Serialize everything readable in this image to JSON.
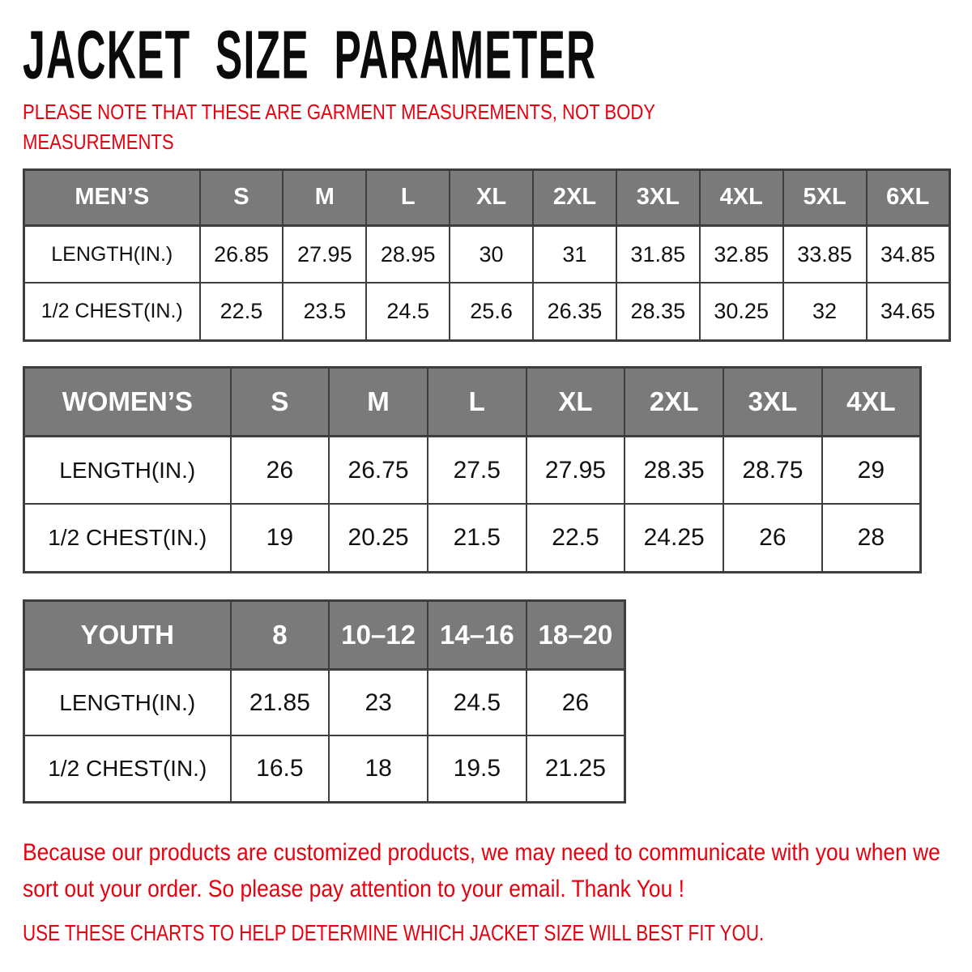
{
  "page": {
    "title": "JACKET SIZE PARAMETER",
    "note": "PLEASE NOTE THAT THESE ARE GARMENT MEASUREMENTS, NOT BODY MEASUREMENTS"
  },
  "tables": [
    {
      "id": "mens",
      "group_label": "MEN’S",
      "size_headers": [
        "S",
        "M",
        "L",
        "XL",
        "2XL",
        "3XL",
        "4XL",
        "5XL",
        "6XL"
      ],
      "rows": [
        {
          "label": "LENGTH(IN.)",
          "values": [
            "26.85",
            "27.95",
            "28.95",
            "30",
            "31",
            "31.85",
            "32.85",
            "33.85",
            "34.85"
          ]
        },
        {
          "label": "1/2 CHEST(IN.)",
          "values": [
            "22.5",
            "23.5",
            "24.5",
            "25.6",
            "26.35",
            "28.35",
            "30.25",
            "32",
            "34.65"
          ]
        }
      ]
    },
    {
      "id": "womens",
      "group_label": "WOMEN’S",
      "size_headers": [
        "S",
        "M",
        "L",
        "XL",
        "2XL",
        "3XL",
        "4XL"
      ],
      "rows": [
        {
          "label": "LENGTH(IN.)",
          "values": [
            "26",
            "26.75",
            "27.5",
            "27.95",
            "28.35",
            "28.75",
            "29"
          ]
        },
        {
          "label": "1/2 CHEST(IN.)",
          "values": [
            "19",
            "20.25",
            "21.5",
            "22.5",
            "24.25",
            "26",
            "28"
          ]
        }
      ]
    },
    {
      "id": "youth",
      "group_label": "YOUTH",
      "size_headers": [
        "8",
        "10–12",
        "14–16",
        "18–20"
      ],
      "rows": [
        {
          "label": "LENGTH(IN.)",
          "values": [
            "21.85",
            "23",
            "24.5",
            "26"
          ]
        },
        {
          "label": "1/2 CHEST(IN.)",
          "values": [
            "16.5",
            "18",
            "19.5",
            "21.25"
          ]
        }
      ]
    }
  ],
  "footer": {
    "paragraph": "Because our products are customized products, we may need to communicate with you when we sort out your order. So please pay attention to your email. Thank You !",
    "closing": "USE THESE CHARTS TO HELP DETERMINE WHICH JACKET SIZE WILL BEST FIT YOU."
  },
  "colors": {
    "header_bg": "#7a7a7a",
    "table_border": "#3e3e3e",
    "accent_red": "#e8000f",
    "title_black": "#0b0b0b"
  }
}
